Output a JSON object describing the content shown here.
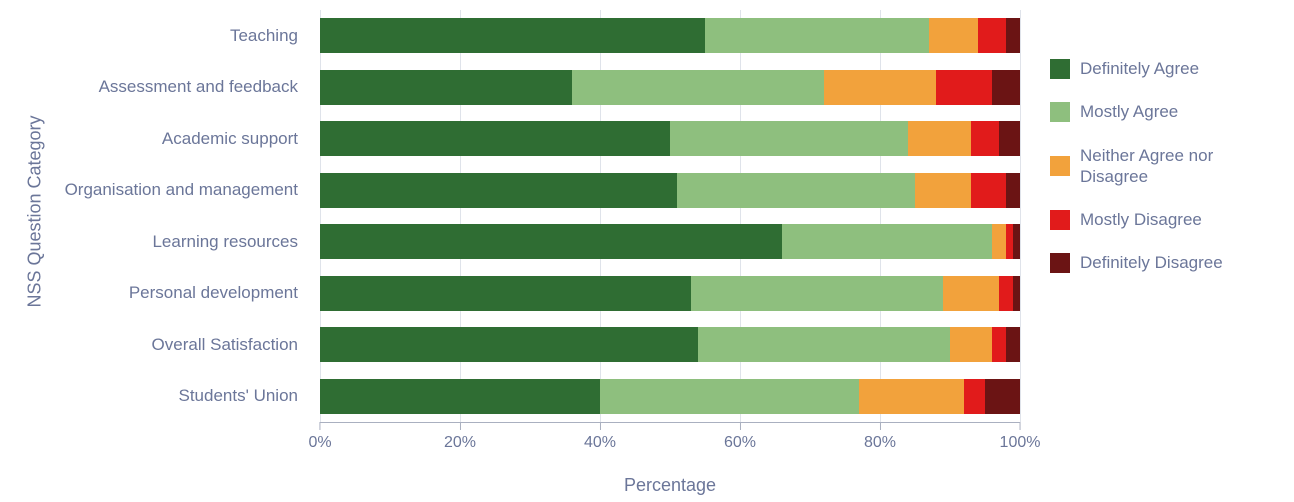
{
  "chart": {
    "type": "stacked-bar-horizontal",
    "yaxis_title": "NSS Question Category",
    "xaxis_title": "Percentage",
    "xlim": [
      0,
      100
    ],
    "xtick_step": 20,
    "xtick_suffix": "%",
    "background_color": "#ffffff",
    "grid_color": "#dfe3ea",
    "axis_color": "#aab0c0",
    "text_color": "#6b7699",
    "label_fontsize": 17,
    "axis_title_fontsize": 18,
    "bar_height_ratio": 0.68,
    "categories": [
      "Teaching",
      "Assessment and feedback",
      "Academic support",
      "Organisation and management",
      "Learning resources",
      "Personal development",
      "Overall Satisfaction",
      "Students' Union"
    ],
    "series": [
      {
        "name": "Definitely Agree",
        "color": "#2f6d33"
      },
      {
        "name": "Mostly Agree",
        "color": "#8ebf7e"
      },
      {
        "name": "Neither Agree nor Disagree",
        "color": "#f2a23c"
      },
      {
        "name": "Mostly Disagree",
        "color": "#e11b1b"
      },
      {
        "name": "Definitely Disagree",
        "color": "#6b1414"
      }
    ],
    "values": [
      [
        55,
        32,
        7,
        4,
        2
      ],
      [
        36,
        36,
        16,
        8,
        4
      ],
      [
        50,
        34,
        9,
        4,
        3
      ],
      [
        51,
        34,
        8,
        5,
        2
      ],
      [
        66,
        30,
        2,
        1,
        1
      ],
      [
        53,
        36,
        8,
        2,
        1
      ],
      [
        54,
        36,
        6,
        2,
        2
      ],
      [
        40,
        37,
        15,
        3,
        5
      ]
    ],
    "xticks": [
      0,
      20,
      40,
      60,
      80,
      100
    ]
  }
}
